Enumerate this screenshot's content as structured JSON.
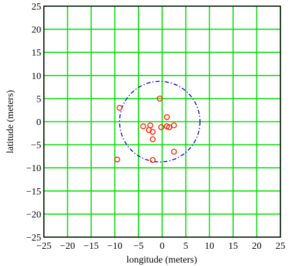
{
  "chart_data": {
    "type": "scatter",
    "title": "",
    "xlabel": "longitude (meters)",
    "ylabel": "latitude (meters)",
    "xlim": [
      -25,
      25
    ],
    "ylim": [
      -25,
      25
    ],
    "x_ticks": [
      -25,
      -20,
      -15,
      -10,
      -5,
      0,
      5,
      10,
      15,
      20,
      25
    ],
    "y_ticks": [
      25,
      20,
      15,
      10,
      5,
      0,
      -5,
      -10,
      -15,
      -20,
      -25
    ],
    "x_tick_labels": [
      "−25",
      "−20",
      "−15",
      "−10",
      "−5",
      "0",
      "5",
      "10",
      "15",
      "20",
      "25"
    ],
    "y_tick_labels": [
      "25",
      "20",
      "15",
      "10",
      "5",
      "0",
      "−5",
      "−10",
      "−15",
      "−20",
      "−25"
    ],
    "grid": true,
    "grid_color": "#00dd00",
    "points": {
      "color": "#ff2200",
      "marker": "circle",
      "x": [
        -0.5,
        -9.0,
        1.0,
        -4.0,
        -2.5,
        -2.8,
        -2.0,
        -0.2,
        1.0,
        1.5,
        2.5,
        -2.0,
        2.5,
        -9.5,
        -2.0
      ],
      "y": [
        5.0,
        3.0,
        1.0,
        -1.0,
        -0.8,
        -1.8,
        -2.2,
        -1.2,
        -1.0,
        -1.2,
        -0.8,
        -3.8,
        -6.5,
        -8.2,
        -8.3
      ]
    },
    "circle": {
      "center": [
        -0.5,
        0.0
      ],
      "radius": 8.5,
      "color": "#0000ee",
      "style": "dash-dot"
    }
  }
}
